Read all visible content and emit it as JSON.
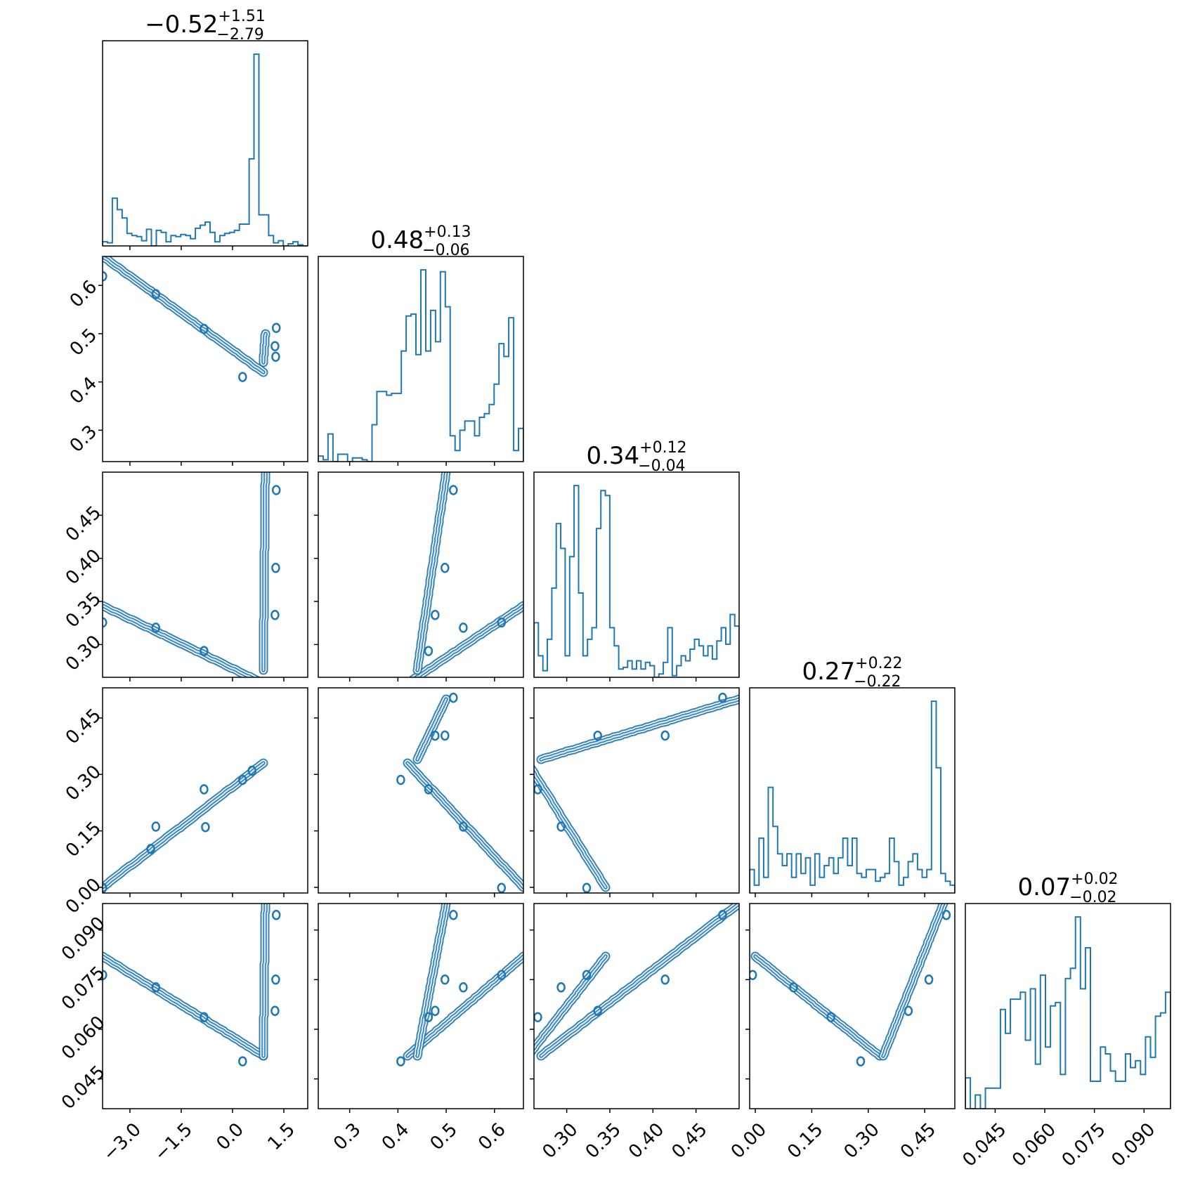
{
  "chart_data": {
    "type": "corner",
    "color": "#1f77b4",
    "params": [
      {
        "range": [
          -3.8,
          2.2
        ],
        "ticks": [
          -3.0,
          -1.5,
          0.0,
          1.5
        ],
        "tick_labels": [
          "−3.0",
          "−1.5",
          "0.0",
          "1.5"
        ],
        "title": {
          "median": "−0.52",
          "plus": "+1.51",
          "minus": "−2.79"
        },
        "hist": [
          4,
          3,
          46,
          35,
          27,
          12,
          10,
          9,
          5,
          16,
          0,
          15,
          13,
          4,
          10,
          9,
          11,
          10,
          7,
          17,
          20,
          23,
          13,
          4,
          10,
          12,
          13,
          15,
          21,
          21,
          84,
          185,
          30,
          30,
          10,
          3,
          5,
          0,
          2,
          4,
          1,
          0
        ]
      },
      {
        "range": [
          0.235,
          0.66
        ],
        "ticks": [
          0.3,
          0.4,
          0.5,
          0.6
        ],
        "tick_labels": [
          "0.3",
          "0.4",
          "0.5",
          "0.6"
        ],
        "title": {
          "median": "0.48",
          "plus": "+0.13",
          "minus": "−0.06"
        },
        "hist": [
          3,
          1,
          15,
          0,
          4,
          4,
          0,
          2,
          2,
          1,
          0,
          20,
          38,
          38,
          36,
          37,
          37,
          60,
          79,
          80,
          58,
          104,
          60,
          82,
          65,
          103,
          84,
          14,
          6,
          17,
          22,
          22,
          14,
          24,
          26,
          31,
          42,
          64,
          57,
          78,
          6,
          18
        ]
      },
      {
        "range": [
          0.262,
          0.5
        ],
        "ticks": [
          0.3,
          0.35,
          0.4,
          0.45
        ],
        "tick_labels": [
          "0.30",
          "0.35",
          "0.40",
          "0.45"
        ],
        "title": {
          "median": "0.34",
          "plus": "+0.12",
          "minus": "−0.04"
        },
        "hist": [
          33,
          13,
          4,
          23,
          54,
          93,
          78,
          13,
          73,
          116,
          51,
          13,
          23,
          30,
          90,
          113,
          110,
          30,
          19,
          5,
          6,
          10,
          5,
          10,
          5,
          9,
          7,
          0,
          2,
          9,
          30,
          1,
          7,
          13,
          10,
          17,
          23,
          19,
          13,
          19,
          11,
          22,
          30,
          20,
          38,
          31
        ]
      },
      {
        "range": [
          -0.015,
          0.53
        ],
        "ticks": [
          0.0,
          0.15,
          0.3,
          0.45
        ],
        "tick_labels": [
          "0.00",
          "0.15",
          "0.30",
          "0.45"
        ],
        "title": {
          "median": "0.27",
          "plus": "+0.22",
          "minus": "−0.22"
        },
        "hist": [
          6,
          2,
          14,
          4,
          27,
          17,
          10,
          7,
          10,
          4,
          10,
          5,
          9,
          2,
          10,
          4,
          7,
          9,
          5,
          9,
          14,
          7,
          14,
          5,
          4,
          6,
          6,
          3,
          4,
          5,
          14,
          8,
          2,
          4,
          8,
          10,
          6,
          4,
          6,
          49,
          32,
          5,
          3,
          2
        ]
      },
      {
        "range": [
          0.036,
          0.098
        ],
        "ticks": [
          0.045,
          0.06,
          0.075,
          0.09
        ],
        "tick_labels": [
          "0.045",
          "0.060",
          "0.075",
          "0.090"
        ],
        "title": {
          "median": "0.07",
          "plus": "+0.02",
          "minus": "−0.02"
        },
        "hist": [
          9,
          0,
          4,
          0,
          6,
          6,
          6,
          29,
          22,
          32,
          32,
          34,
          20,
          35,
          13,
          39,
          18,
          30,
          31,
          10,
          38,
          41,
          56,
          35,
          47,
          8,
          8,
          18,
          16,
          11,
          8,
          8,
          16,
          12,
          14,
          10,
          21,
          15,
          27,
          28,
          34
        ]
      }
    ]
  }
}
